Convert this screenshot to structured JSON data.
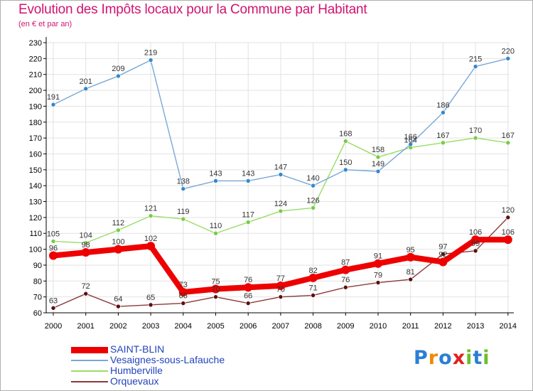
{
  "title": "Evolution des Impôts locaux pour la Commune par Habitant",
  "subtitle": "(en € et par an)",
  "logo": {
    "text": "Proxiti",
    "letters": [
      "P",
      "r",
      "o",
      "x",
      "i",
      "t",
      "i"
    ],
    "colors": [
      "#2a7fd4",
      "#f08a00",
      "#2a7fd4",
      "#e02020",
      "#6cbf2a",
      "#2a7fd4",
      "#6cbf2a"
    ]
  },
  "chart_data": {
    "type": "line",
    "x": [
      2000,
      2001,
      2002,
      2003,
      2004,
      2005,
      2006,
      2007,
      2008,
      2009,
      2010,
      2011,
      2012,
      2013,
      2014
    ],
    "ylim": [
      60,
      230
    ],
    "yticks": [
      60,
      70,
      80,
      90,
      100,
      110,
      120,
      130,
      140,
      150,
      160,
      170,
      180,
      190,
      200,
      210,
      220,
      230
    ],
    "grid": true,
    "series": [
      {
        "name": "Orquevaux",
        "color": "#8b3a3a",
        "marker": "#5a1010",
        "values": [
          63,
          72,
          64,
          65,
          66,
          70,
          66,
          70,
          71,
          76,
          79,
          81,
          97,
          99,
          120
        ],
        "labels": [
          "63",
          "72",
          "64",
          "65",
          "66",
          "70",
          "66",
          "70",
          "71",
          "76",
          "79",
          "81",
          "97",
          "99",
          "120"
        ]
      },
      {
        "name": "Humberville",
        "color": "#99dd66",
        "marker": "#77cc44",
        "values": [
          105,
          104,
          112,
          121,
          119,
          110,
          117,
          124,
          126,
          168,
          158,
          164,
          167,
          170,
          167
        ],
        "labels": [
          "105",
          "104",
          "112",
          "121",
          "119",
          "110",
          "117",
          "124",
          "126",
          "168",
          "158",
          "164",
          "167",
          "170",
          "167"
        ]
      },
      {
        "name": "Vesaignes-sous-Lafauche",
        "color": "#77a8d8",
        "marker": "#3388cc",
        "values": [
          191,
          201,
          209,
          219,
          138,
          143,
          143,
          147,
          140,
          150,
          149,
          166,
          186,
          215,
          220
        ],
        "labels": [
          "191",
          "201",
          "209",
          "219",
          "138",
          "143",
          "143",
          "147",
          "140",
          "150",
          "149",
          "166",
          "186",
          "215",
          "220"
        ]
      },
      {
        "name": "SAINT-BLIN",
        "color": "#ee0000",
        "marker": "#ee0000",
        "values": [
          96,
          98,
          100,
          102,
          73,
          75,
          76,
          77,
          82,
          87,
          91,
          95,
          92,
          106,
          106
        ],
        "labels": [
          "96",
          "98",
          "100",
          "102",
          "73",
          "75",
          "76",
          "77",
          "82",
          "87",
          "91",
          "95",
          "92",
          "106",
          "106"
        ]
      }
    ],
    "legend": [
      "SAINT-BLIN",
      "Vesaignes-sous-Lafauche",
      "Humberville",
      "Orquevaux"
    ]
  },
  "legend_items": [
    {
      "name": "SAINT-BLIN",
      "color": "#ee0000",
      "thick": 9
    },
    {
      "name": "Vesaignes-sous-Lafauche",
      "color": "#77a8d8",
      "thick": 2
    },
    {
      "name": "Humberville",
      "color": "#99dd66",
      "thick": 2
    },
    {
      "name": "Orquevaux",
      "color": "#8b3a3a",
      "thick": 2
    }
  ]
}
